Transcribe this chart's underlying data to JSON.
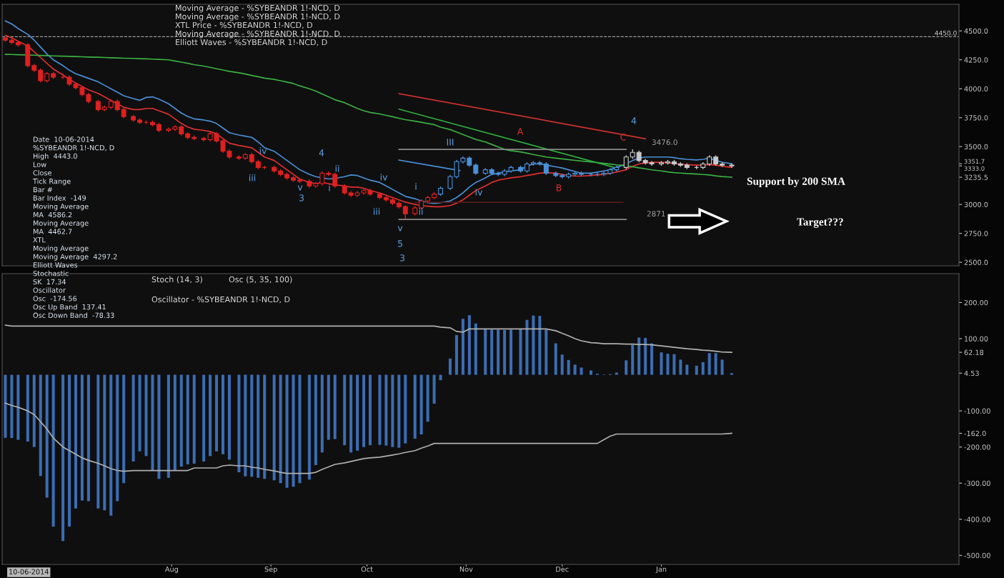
{
  "chart_data": [
    {
      "type": "candlestick",
      "x": [
        "2014-06-10",
        "2014-06-12",
        "2014-06-14",
        "2014-06-17",
        "2014-06-19",
        "2014-06-21",
        "2014-06-23",
        "2014-06-25",
        "2014-06-28",
        "2014-06-30",
        "2014-07-02",
        "2014-07-04",
        "2014-07-06",
        "2014-07-09",
        "2014-07-11",
        "2014-07-13",
        "2014-07-15",
        "2014-07-17",
        "2014-07-20",
        "2014-07-22",
        "2014-07-24",
        "2014-07-26",
        "2014-07-28",
        "2014-07-31",
        "2014-08-02",
        "2014-08-04",
        "2014-08-06",
        "2014-08-08",
        "2014-08-11",
        "2014-08-13",
        "2014-08-15",
        "2014-08-17",
        "2014-08-19",
        "2014-08-22",
        "2014-08-24",
        "2014-08-26",
        "2014-08-28",
        "2014-08-30",
        "2014-09-02",
        "2014-09-04",
        "2014-09-06",
        "2014-09-08",
        "2014-09-10",
        "2014-09-13",
        "2014-09-15",
        "2014-09-17",
        "2014-09-19",
        "2014-09-21",
        "2014-09-24",
        "2014-09-26",
        "2014-09-28",
        "2014-09-30",
        "2014-10-02",
        "2014-10-05",
        "2014-10-07",
        "2014-10-09",
        "2014-10-11",
        "2014-10-13",
        "2014-10-16",
        "2014-10-18",
        "2014-10-20",
        "2014-10-22",
        "2014-10-24",
        "2014-10-27",
        "2014-10-29",
        "2014-10-31",
        "2014-11-02",
        "2014-11-04",
        "2014-11-07",
        "2014-11-09",
        "2014-11-11",
        "2014-11-13",
        "2014-11-15",
        "2014-11-18",
        "2014-11-20",
        "2014-11-22",
        "2014-11-24",
        "2014-11-26",
        "2014-11-29",
        "2014-12-01",
        "2014-12-03",
        "2014-12-05",
        "2014-12-07",
        "2014-12-10",
        "2014-12-12",
        "2014-12-14",
        "2014-12-16",
        "2014-12-18",
        "2014-12-21",
        "2014-12-23",
        "2014-12-25",
        "2014-12-27",
        "2014-12-29",
        "2015-01-01",
        "2015-01-03",
        "2015-01-05",
        "2015-01-07",
        "2015-01-09",
        "2015-01-12",
        "2015-01-14",
        "2015-01-16",
        "2015-01-18",
        "2015-01-20",
        "2015-01-23"
      ],
      "ohlc": [
        [
          4440,
          4450,
          4405,
          4420
        ],
        [
          4420,
          4435,
          4385,
          4400
        ],
        [
          4400,
          4415,
          4365,
          4380
        ],
        [
          4380,
          4395,
          4185,
          4200
        ],
        [
          4200,
          4215,
          4145,
          4160
        ],
        [
          4160,
          4175,
          4055,
          4070
        ],
        [
          4070,
          4145,
          4055,
          4130
        ],
        [
          4130,
          4145,
          4085,
          4100
        ],
        [
          4100,
          4115,
          4085,
          4100
        ],
        [
          4100,
          4115,
          4025,
          4040
        ],
        [
          4040,
          4055,
          3995,
          4010
        ],
        [
          4010,
          4025,
          3935,
          3950
        ],
        [
          3950,
          3965,
          3875,
          3890
        ],
        [
          3890,
          3905,
          3805,
          3820
        ],
        [
          3820,
          3855,
          3805,
          3840
        ],
        [
          3840,
          3905,
          3825,
          3890
        ],
        [
          3890,
          3905,
          3805,
          3820
        ],
        [
          3820,
          3835,
          3745,
          3760
        ],
        [
          3760,
          3775,
          3715,
          3730
        ],
        [
          3730,
          3745,
          3695,
          3710
        ],
        [
          3710,
          3725,
          3695,
          3710
        ],
        [
          3710,
          3725,
          3675,
          3690
        ],
        [
          3690,
          3705,
          3625,
          3640
        ],
        [
          3640,
          3665,
          3625,
          3650
        ],
        [
          3650,
          3685,
          3635,
          3670
        ],
        [
          3670,
          3685,
          3595,
          3610
        ],
        [
          3610,
          3625,
          3565,
          3580
        ],
        [
          3580,
          3595,
          3555,
          3570
        ],
        [
          3570,
          3585,
          3545,
          3560
        ],
        [
          3560,
          3625,
          3545,
          3610
        ],
        [
          3610,
          3625,
          3535,
          3550
        ],
        [
          3550,
          3565,
          3445,
          3460
        ],
        [
          3460,
          3475,
          3395,
          3410
        ],
        [
          3410,
          3425,
          3385,
          3400
        ],
        [
          3400,
          3445,
          3385,
          3430
        ],
        [
          3430,
          3445,
          3355,
          3370
        ],
        [
          3370,
          3385,
          3305,
          3320
        ],
        [
          3320,
          3335,
          3305,
          3320
        ],
        [
          3320,
          3335,
          3275,
          3290
        ],
        [
          3290,
          3305,
          3245,
          3260
        ],
        [
          3260,
          3275,
          3215,
          3230
        ],
        [
          3230,
          3245,
          3195,
          3210
        ],
        [
          3210,
          3225,
          3185,
          3200
        ],
        [
          3200,
          3215,
          3145,
          3160
        ],
        [
          3160,
          3195,
          3145,
          3180
        ],
        [
          3180,
          3285,
          3165,
          3270
        ],
        [
          3270,
          3285,
          3245,
          3260
        ],
        [
          3260,
          3275,
          3145,
          3160
        ],
        [
          3160,
          3175,
          3085,
          3100
        ],
        [
          3100,
          3115,
          3065,
          3080
        ],
        [
          3080,
          3115,
          3065,
          3100
        ],
        [
          3100,
          3135,
          3085,
          3120
        ],
        [
          3120,
          3135,
          3075,
          3090
        ],
        [
          3090,
          3105,
          3045,
          3060
        ],
        [
          3060,
          3075,
          3025,
          3040
        ],
        [
          3040,
          3055,
          2995,
          3010
        ],
        [
          3010,
          3025,
          2965,
          2980
        ],
        [
          2980,
          2995,
          2871,
          2920
        ],
        [
          2920,
          2985,
          2905,
          2970
        ],
        [
          2970,
          3045,
          2955,
          3030
        ],
        [
          3030,
          3075,
          3015,
          3060
        ],
        [
          3060,
          3105,
          3045,
          3090
        ],
        [
          3090,
          3155,
          3075,
          3140
        ],
        [
          3140,
          3255,
          3125,
          3240
        ],
        [
          3240,
          3385,
          3225,
          3370
        ],
        [
          3370,
          3415,
          3355,
          3400
        ],
        [
          3400,
          3415,
          3325,
          3340
        ],
        [
          3340,
          3355,
          3255,
          3270
        ],
        [
          3270,
          3315,
          3255,
          3300
        ],
        [
          3300,
          3315,
          3255,
          3270
        ],
        [
          3270,
          3285,
          3245,
          3260
        ],
        [
          3260,
          3305,
          3245,
          3290
        ],
        [
          3290,
          3335,
          3275,
          3320
        ],
        [
          3320,
          3335,
          3275,
          3290
        ],
        [
          3290,
          3365,
          3275,
          3350
        ],
        [
          3350,
          3375,
          3335,
          3360
        ],
        [
          3360,
          3375,
          3335,
          3350
        ],
        [
          3350,
          3365,
          3255,
          3270
        ],
        [
          3270,
          3285,
          3235,
          3250
        ],
        [
          3250,
          3265,
          3225,
          3240
        ],
        [
          3240,
          3275,
          3225,
          3260
        ],
        [
          3260,
          3285,
          3245,
          3270
        ],
        [
          3270,
          3285,
          3245,
          3260
        ],
        [
          3260,
          3275,
          3245,
          3260
        ],
        [
          3260,
          3275,
          3245,
          3260
        ],
        [
          3260,
          3285,
          3245,
          3270
        ],
        [
          3270,
          3315,
          3255,
          3300
        ],
        [
          3300,
          3335,
          3285,
          3320
        ],
        [
          3320,
          3425,
          3305,
          3410
        ],
        [
          3410,
          3476,
          3395,
          3450
        ],
        [
          3450,
          3465,
          3365,
          3380
        ],
        [
          3380,
          3395,
          3345,
          3360
        ],
        [
          3360,
          3375,
          3335,
          3350
        ],
        [
          3350,
          3375,
          3335,
          3360
        ],
        [
          3360,
          3385,
          3345,
          3370
        ],
        [
          3370,
          3385,
          3335,
          3350
        ],
        [
          3350,
          3365,
          3325,
          3340
        ],
        [
          3340,
          3355,
          3305,
          3320
        ],
        [
          3320,
          3335,
          3305,
          3320
        ],
        [
          3320,
          3365,
          3305,
          3350
        ],
        [
          3350,
          3425,
          3335,
          3410
        ],
        [
          3410,
          3425,
          3335,
          3350
        ],
        [
          3350,
          3365,
          3325,
          3340
        ],
        [
          3340,
          3355,
          3318,
          3333
        ]
      ],
      "colors": [
        "#e02020",
        "#e02020",
        "#e02020",
        "#e02020",
        "#e02020",
        "#e02020",
        "#e02020",
        "#e02020",
        "#e02020",
        "#e02020",
        "#e02020",
        "#e02020",
        "#e02020",
        "#e02020",
        "#e02020",
        "#e02020",
        "#e02020",
        "#e02020",
        "#e02020",
        "#e02020",
        "#e02020",
        "#e02020",
        "#e02020",
        "#e02020",
        "#e02020",
        "#e02020",
        "#e02020",
        "#e02020",
        "#e02020",
        "#e02020",
        "#e02020",
        "#e02020",
        "#e02020",
        "#e02020",
        "#e02020",
        "#e02020",
        "#e02020",
        "#e02020",
        "#e02020",
        "#e02020",
        "#e02020",
        "#e02020",
        "#e02020",
        "#e02020",
        "#e02020",
        "#e02020",
        "#e02020",
        "#e02020",
        "#e02020",
        "#e02020",
        "#e02020",
        "#e02020",
        "#e02020",
        "#e02020",
        "#e02020",
        "#e02020",
        "#e02020",
        "#e02020",
        "#e02020",
        "#e02020",
        "#e02020",
        "#e02020",
        "#4a90d9",
        "#4a90d9",
        "#4a90d9",
        "#4a90d9",
        "#4a90d9",
        "#4a90d9",
        "#4a90d9",
        "#4a90d9",
        "#4a90d9",
        "#4a90d9",
        "#4a90d9",
        "#4a90d9",
        "#4a90d9",
        "#4a90d9",
        "#4a90d9",
        "#4a90d9",
        "#4a90d9",
        "#4a90d9",
        "#4a90d9",
        "#4a90d9",
        "#4a90d9",
        "#4a90d9",
        "#4a90d9",
        "#4a90d9",
        "#4a90d9",
        "#4a90d9",
        "#c8c8c8",
        "#c8c8c8",
        "#c8c8c8",
        "#c8c8c8",
        "#c8c8c8",
        "#c8c8c8",
        "#c8c8c8",
        "#c8c8c8",
        "#c8c8c8",
        "#c8c8c8",
        "#c8c8c8",
        "#c8c8c8",
        "#c8c8c8",
        "#c8c8c8",
        "#c8c8c8",
        "#c8c8c8"
      ],
      "series": [
        {
          "type": "line",
          "color": "#4a8fd6",
          "values": [
            4586.2,
            4560,
            4520,
            4470,
            4420,
            4360,
            4300,
            4250,
            4200,
            4160,
            4130,
            4110,
            4090,
            4060,
            4030,
            4000,
            3970,
            3940,
            3915,
            3900,
            3925,
            3930,
            3910,
            3870,
            3830,
            3790,
            3760,
            3740,
            3730,
            3720,
            3700,
            3660,
            3620,
            3600,
            3590,
            3580,
            3540,
            3490,
            3460,
            3420,
            3380,
            3340,
            3300,
            3260,
            3240,
            3230,
            3220,
            3225,
            3240,
            3255,
            3250,
            3230,
            3210,
            3190,
            3160,
            3130,
            3100,
            3070,
            3050,
            3030,
            3015,
            3010,
            3015,
            3030,
            3060,
            3100,
            3150,
            3190,
            3230,
            3260,
            3270,
            3280,
            3290,
            3300,
            3330,
            3350,
            3350,
            3340,
            3325,
            3315,
            3300,
            3285,
            3270,
            3270,
            3280,
            3290,
            3300,
            3320,
            3350,
            3380,
            3400,
            3410,
            3410,
            3410,
            3410,
            3405,
            3395,
            3390,
            3385,
            3390,
            3400,
            3380,
            3365,
            3351.7
          ]
        },
        {
          "type": "line",
          "color": "#e03030",
          "values": [
            4462.7,
            4440,
            4410,
            4370,
            4320,
            4270,
            4220,
            4170,
            4120,
            4080,
            4050,
            4020,
            3990,
            3960,
            3930,
            3900,
            3870,
            3840,
            3820,
            3820,
            3830,
            3830,
            3810,
            3780,
            3740,
            3700,
            3670,
            3650,
            3640,
            3630,
            3610,
            3570,
            3530,
            3510,
            3500,
            3490,
            3450,
            3410,
            3380,
            3340,
            3300,
            3260,
            3220,
            3190,
            3180,
            3190,
            3180,
            3170,
            3160,
            3150,
            3150,
            3140,
            3120,
            3100,
            3080,
            3060,
            3040,
            3020,
            3000,
            2990,
            2985,
            2980,
            2980,
            2990,
            3010,
            3040,
            3080,
            3120,
            3160,
            3190,
            3210,
            3220,
            3230,
            3240,
            3250,
            3260,
            3270,
            3275,
            3270,
            3260,
            3250,
            3245,
            3245,
            3250,
            3255,
            3260,
            3270,
            3280,
            3300,
            3330,
            3350,
            3360,
            3365,
            3365,
            3360,
            3355,
            3350,
            3345,
            3340,
            3340,
            3345,
            3340,
            3330,
            3320
          ]
        },
        {
          "type": "line",
          "color": "#3cb043",
          "values": [
            4297.2,
            4296,
            4294,
            4292,
            4290,
            4288,
            4286,
            4284,
            4282,
            4280,
            4278,
            4276,
            4274,
            4272,
            4270,
            4268,
            4266,
            4264,
            4262,
            4260,
            4258,
            4256,
            4254,
            4250,
            4240,
            4230,
            4220,
            4208,
            4196,
            4185,
            4173,
            4162,
            4150,
            4138,
            4127,
            4115,
            4104,
            4092,
            4081,
            4069,
            4058,
            4045,
            4025,
            4000,
            3980,
            3955,
            3930,
            3905,
            3880,
            3855,
            3830,
            3810,
            3795,
            3782,
            3770,
            3758,
            3745,
            3733,
            3720,
            3710,
            3700,
            3690,
            3668,
            3647,
            3626,
            3605,
            3583,
            3562,
            3540,
            3519,
            3497,
            3476,
            3465,
            3454,
            3443,
            3432,
            3421,
            3410,
            3400,
            3394,
            3388,
            3381,
            3375,
            3368,
            3362,
            3355,
            3349,
            3342,
            3335,
            3326,
            3317,
            3308,
            3299,
            3290,
            3281,
            3275,
            3271,
            3267,
            3263,
            3259,
            3255,
            3247,
            3241,
            3235.5
          ]
        },
        {
          "type": "line",
          "color": "#d03030",
          "x": [
            "2014-10-11",
            "2014-12-27"
          ],
          "values": [
            3958,
            3568
          ]
        },
        {
          "type": "line",
          "color": "#30b040",
          "x": [
            "2014-10-11",
            "2014-12-17"
          ],
          "values": [
            3824,
            3323
          ]
        },
        {
          "type": "line",
          "color": "#4a8fd6",
          "x": [
            "2014-10-11",
            "2014-10-30"
          ],
          "values": [
            3384,
            3293
          ]
        },
        {
          "type": "line",
          "color": "#8a8a8a",
          "x": [
            "2014-10-11",
            "2014-12-21"
          ],
          "values": [
            3476,
            3476
          ]
        },
        {
          "type": "line",
          "color": "#8a8a8a",
          "x": [
            "2014-10-11",
            "2014-12-21"
          ],
          "values": [
            2871,
            2871
          ]
        },
        {
          "type": "line",
          "color": "#5a1a1a",
          "x": [
            "2014-10-16",
            "2014-12-20"
          ],
          "values": [
            3018,
            3018
          ]
        }
      ],
      "ref_lines": [
        {
          "axis": "y",
          "value": 4450,
          "label": "4450.0",
          "color": "#9a9a9a",
          "line_style": "dashed"
        }
      ],
      "xlim": [
        "2014-06-09",
        "2015-04-04"
      ],
      "ylim": [
        2470,
        4730
      ],
      "yticks": [
        {
          "value": 2500,
          "label": "2500.0"
        },
        {
          "value": 2750,
          "label": "2750.0"
        },
        {
          "value": 3000,
          "label": "3000.0"
        },
        {
          "value": 3235.5,
          "label": "3235.5"
        },
        {
          "value": 3333,
          "label": "3333.0"
        },
        {
          "value": 3351.7,
          "label": "3351.7"
        },
        {
          "value": 3500,
          "label": "3500.0"
        },
        {
          "value": 3750,
          "label": "3750.0"
        },
        {
          "value": 4000,
          "label": "4000.0"
        },
        {
          "value": 4250,
          "label": "4250.0"
        },
        {
          "value": 4500,
          "label": "4500.0"
        }
      ],
      "tick_labels": "y",
      "annotations": [
        "Moving Average - %SYBEANDR 1!-NCD, D",
        "Moving Average - %SYBEANDR 1!-NCD, D",
        "XTL Price - %SYBEANDR 1!-NCD, D",
        "Moving Average - %SYBEANDR 1!-NCD, D",
        "Elliott Waves - %SYBEANDR 1!-NCD, D",
        "Support by 200 SMA",
        "Target???",
        "iii",
        "iv",
        "v",
        "3",
        "4",
        "ii",
        "i",
        "iv",
        "iii",
        "v",
        "5",
        "3",
        "i",
        "ii",
        "III",
        "iv",
        "A",
        "B",
        "4",
        "C",
        "3476.0",
        "2871"
      ]
    },
    {
      "type": "bar",
      "x": [
        "2014-06-10",
        "2014-06-12",
        "2014-06-14",
        "2014-06-17",
        "2014-06-19",
        "2014-06-21",
        "2014-06-23",
        "2014-06-25",
        "2014-06-28",
        "2014-06-30",
        "2014-07-02",
        "2014-07-04",
        "2014-07-06",
        "2014-07-09",
        "2014-07-11",
        "2014-07-13",
        "2014-07-15",
        "2014-07-17",
        "2014-07-20",
        "2014-07-22",
        "2014-07-24",
        "2014-07-26",
        "2014-07-28",
        "2014-07-31",
        "2014-08-02",
        "2014-08-04",
        "2014-08-06",
        "2014-08-08",
        "2014-08-11",
        "2014-08-13",
        "2014-08-15",
        "2014-08-17",
        "2014-08-19",
        "2014-08-22",
        "2014-08-24",
        "2014-08-26",
        "2014-08-28",
        "2014-08-30",
        "2014-09-02",
        "2014-09-04",
        "2014-09-06",
        "2014-09-08",
        "2014-09-10",
        "2014-09-13",
        "2014-09-15",
        "2014-09-17",
        "2014-09-19",
        "2014-09-21",
        "2014-09-24",
        "2014-09-26",
        "2014-09-28",
        "2014-09-30",
        "2014-10-02",
        "2014-10-05",
        "2014-10-07",
        "2014-10-09",
        "2014-10-11",
        "2014-10-13",
        "2014-10-16",
        "2014-10-18",
        "2014-10-20",
        "2014-10-22",
        "2014-10-24",
        "2014-10-27",
        "2014-10-29",
        "2014-10-31",
        "2014-11-02",
        "2014-11-04",
        "2014-11-07",
        "2014-11-09",
        "2014-11-11",
        "2014-11-13",
        "2014-11-15",
        "2014-11-18",
        "2014-11-20",
        "2014-11-22",
        "2014-11-24",
        "2014-11-26",
        "2014-11-29",
        "2014-12-01",
        "2014-12-03",
        "2014-12-05",
        "2014-12-07",
        "2014-12-10",
        "2014-12-12",
        "2014-12-14",
        "2014-12-16",
        "2014-12-18",
        "2014-12-21",
        "2014-12-23",
        "2014-12-25",
        "2014-12-27",
        "2014-12-29",
        "2015-01-01",
        "2015-01-03",
        "2015-01-05",
        "2015-01-07",
        "2015-01-09",
        "2015-01-12",
        "2015-01-14",
        "2015-01-16",
        "2015-01-18",
        "2015-01-20",
        "2015-01-23"
      ],
      "series": [
        {
          "type": "bar",
          "color": "#3b6db3",
          "values": [
            -174.56,
            -175,
            -180,
            -185,
            -200,
            -280,
            -340,
            -420,
            -460,
            -420,
            -370,
            -348,
            -350,
            -370,
            -375,
            -390,
            -350,
            -300,
            -240,
            -212,
            -225,
            -265,
            -288,
            -285,
            -265,
            -254,
            -248,
            -246,
            -240,
            -225,
            -212,
            -220,
            -235,
            -270,
            -281,
            -282,
            -285,
            -288,
            -292,
            -300,
            -313,
            -310,
            -300,
            -290,
            -250,
            -215,
            -180,
            -178,
            -195,
            -215,
            -210,
            -200,
            -195,
            -194,
            -196,
            -200,
            -202,
            -190,
            -177,
            -165,
            -130,
            -80,
            -15,
            45,
            110,
            155,
            165,
            142,
            128,
            125,
            125,
            124,
            125,
            128,
            152,
            164,
            163,
            125,
            87,
            56,
            41,
            28,
            20,
            12,
            3,
            1,
            2,
            6,
            40,
            83,
            103,
            102,
            87,
            62,
            58,
            57,
            42,
            28,
            25,
            35,
            60,
            60,
            42,
            4.53
          ]
        },
        {
          "type": "line",
          "color": "#b0b0b0",
          "values": [
            137.41,
            135,
            135,
            135,
            135,
            135,
            135,
            135,
            135,
            135,
            135,
            135,
            135,
            135,
            135,
            135,
            135,
            135,
            135,
            135,
            135,
            135,
            135,
            135,
            135,
            135,
            135,
            135,
            135,
            135,
            135,
            135,
            135,
            135,
            135,
            135,
            135,
            135,
            135,
            135,
            135,
            135,
            135,
            135,
            135,
            135,
            135,
            135,
            135,
            135,
            135,
            135,
            135,
            135,
            135,
            135,
            135,
            135,
            135,
            135,
            135,
            135,
            132,
            130,
            120,
            118,
            127,
            127,
            127,
            127,
            127,
            127,
            127,
            127,
            127,
            127,
            127,
            127,
            122,
            115,
            108,
            100,
            94,
            89,
            88,
            86,
            86,
            86,
            85,
            85,
            84,
            84,
            83,
            80,
            78,
            76,
            74,
            72,
            70,
            68,
            67,
            65,
            63,
            62.18
          ]
        },
        {
          "type": "line",
          "color": "#b0b0b0",
          "values": [
            -78.33,
            -85,
            -90,
            -100,
            -110,
            -130,
            -150,
            -175,
            -200,
            -210,
            -220,
            -230,
            -237,
            -245,
            -252,
            -260,
            -265,
            -267,
            -265,
            -265,
            -265,
            -265,
            -265,
            -265,
            -265,
            -265,
            -265,
            -258,
            -258,
            -258,
            -258,
            -252,
            -250,
            -252,
            -252,
            -256,
            -258,
            -262,
            -266,
            -270,
            -273,
            -273,
            -273,
            -273,
            -270,
            -262,
            -255,
            -248,
            -244,
            -240,
            -236,
            -232,
            -230,
            -228,
            -225,
            -222,
            -219,
            -215,
            -210,
            -203,
            -197,
            -190,
            -190,
            -190,
            -190,
            -190,
            -190,
            -190,
            -190,
            -190,
            -190,
            -190,
            -190,
            -190,
            -190,
            -190,
            -190,
            -190,
            -190,
            -190,
            -190,
            -190,
            -190,
            -190,
            -190,
            -180,
            -170,
            -164,
            -164,
            -164,
            -164,
            -164,
            -164,
            -164,
            -164,
            -164,
            -164,
            -164,
            -164,
            -164,
            -164,
            -164,
            -164,
            -162
          ]
        }
      ],
      "xlim": [
        "2014-06-09",
        "2015-04-04"
      ],
      "xticks": [
        {
          "value": "2014-08-01",
          "label": "Aug"
        },
        {
          "value": "2014-09-01",
          "label": "Sep"
        },
        {
          "value": "2014-10-01",
          "label": "Oct"
        },
        {
          "value": "2014-11-01",
          "label": "Nov"
        },
        {
          "value": "2014-12-01",
          "label": "Dec"
        },
        {
          "value": "2015-01-01",
          "label": "Jan"
        }
      ],
      "ylim": [
        -525,
        280
      ],
      "yticks": [
        {
          "value": -500,
          "label": "-500.00"
        },
        {
          "value": -400,
          "label": "-400.00"
        },
        {
          "value": -300,
          "label": "-300.00"
        },
        {
          "value": -200,
          "label": "-200.00"
        },
        {
          "value": -162,
          "label": "-162.0"
        },
        {
          "value": -100,
          "label": "-100.00"
        },
        {
          "value": 4.53,
          "label": "4.53"
        },
        {
          "value": 62.18,
          "label": "62.18"
        },
        {
          "value": 100,
          "label": "100.00"
        },
        {
          "value": 200,
          "label": "200.00"
        }
      ],
      "annotations": [
        "Stoch (14, 3)",
        "Osc (5, 35, 100)",
        "Oscillator - %SYBEANDR 1!-NCD, D",
        "10-06-2014"
      ]
    },
    {
      "type": "other",
      "annotations": [
        "Date  10-06-2014",
        "%SYBEANDR 1!-NCD, D",
        "High  4443.0",
        "Low",
        "Close",
        "Tick Range",
        "Bar #",
        "Bar Index  -149",
        "Moving Average",
        "MA  4586.2",
        "Moving Average",
        "MA  4462.7",
        "XTL",
        "Moving Average",
        "Moving Average  4297.2",
        "Elliott Waves",
        "Stochastic",
        "SK  17.34",
        "Oscillator",
        "Osc  -174.56",
        "Osc Up Band  137.41",
        "Osc Down Band  -78.33"
      ]
    }
  ]
}
